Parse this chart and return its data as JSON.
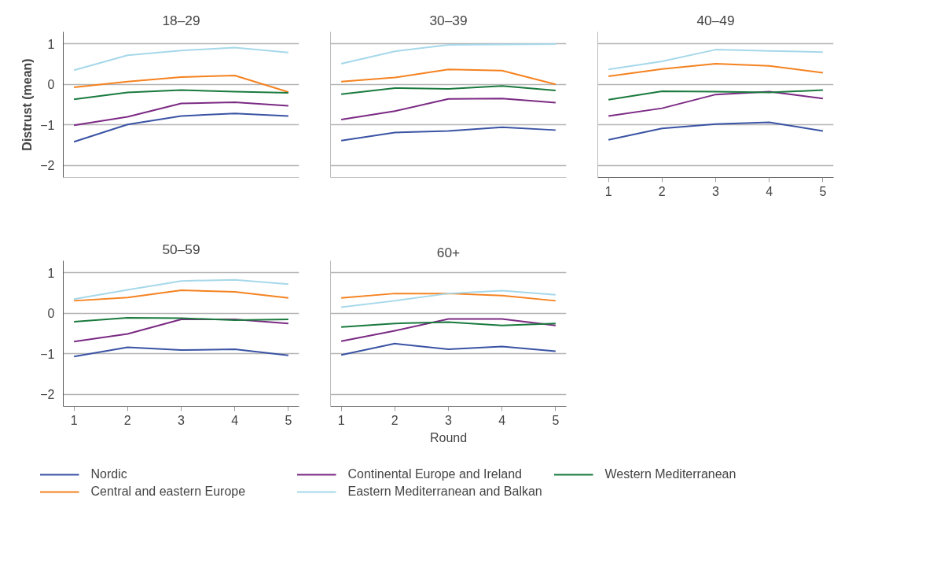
{
  "chart_data": [
    {
      "type": "line",
      "title": "18–29",
      "ylabel": "Distrust (mean)",
      "legend": "bottom",
      "x": [
        1,
        2,
        3,
        4,
        5
      ],
      "xlim": [
        0.8,
        5.2
      ],
      "ylim": [
        -2.3,
        1.3
      ],
      "xticks": [
        1,
        2,
        3,
        4,
        5
      ],
      "yticks": [
        -2,
        -1,
        0,
        1
      ],
      "grid": "y",
      "tick_labels": "y",
      "series": [
        {
          "name": "Nordic",
          "color": "#3a53a4",
          "values": [
            -1.42,
            -0.99,
            -0.78,
            -0.72,
            -0.78
          ]
        },
        {
          "name": "Central and eastern Europe",
          "color": "#f58220",
          "values": [
            -0.07,
            0.07,
            0.18,
            0.22,
            -0.19
          ]
        },
        {
          "name": "Continental Europe and Ireland",
          "color": "#7b2a83",
          "values": [
            -1.01,
            -0.8,
            -0.47,
            -0.44,
            -0.53
          ]
        },
        {
          "name": "Eastern Mediterranean and Balkan",
          "color": "#a6d8ea",
          "values": [
            0.35,
            0.72,
            0.84,
            0.91,
            0.79
          ]
        },
        {
          "name": "Western Mediterranean",
          "color": "#1a7a3e",
          "values": [
            -0.37,
            -0.2,
            -0.14,
            -0.18,
            -0.21
          ]
        }
      ]
    },
    {
      "type": "line",
      "title": "30–39",
      "x": [
        1,
        2,
        3,
        4,
        5
      ],
      "xlim": [
        0.8,
        5.2
      ],
      "ylim": [
        -2.3,
        1.3
      ],
      "xticks": [
        1,
        2,
        3,
        4,
        5
      ],
      "yticks": [
        -2,
        -1,
        0,
        1
      ],
      "grid": "y",
      "tick_labels": false,
      "series": [
        {
          "name": "Nordic",
          "color": "#3a53a4",
          "values": [
            -1.39,
            -1.19,
            -1.15,
            -1.06,
            -1.13
          ]
        },
        {
          "name": "Central and eastern Europe",
          "color": "#f58220",
          "values": [
            0.07,
            0.17,
            0.37,
            0.34,
            0.0
          ]
        },
        {
          "name": "Continental Europe and Ireland",
          "color": "#7b2a83",
          "values": [
            -0.87,
            -0.66,
            -0.36,
            -0.35,
            -0.45
          ]
        },
        {
          "name": "Eastern Mediterranean and Balkan",
          "color": "#a6d8ea",
          "values": [
            0.51,
            0.82,
            0.98,
            0.99,
            1.0
          ]
        },
        {
          "name": "Western Mediterranean",
          "color": "#1a7a3e",
          "values": [
            -0.24,
            -0.09,
            -0.11,
            -0.04,
            -0.15
          ]
        }
      ]
    },
    {
      "type": "line",
      "title": "40–49",
      "x": [
        1,
        2,
        3,
        4,
        5
      ],
      "xlim": [
        0.8,
        5.2
      ],
      "ylim": [
        -2.3,
        1.3
      ],
      "xticks": [
        1,
        2,
        3,
        4,
        5
      ],
      "yticks": [
        -2,
        -1,
        0,
        1
      ],
      "grid": "y",
      "tick_labels": "x",
      "series": [
        {
          "name": "Nordic",
          "color": "#3a53a4",
          "values": [
            -1.37,
            -1.09,
            -0.98,
            -0.94,
            -1.15
          ]
        },
        {
          "name": "Central and eastern Europe",
          "color": "#f58220",
          "values": [
            0.2,
            0.38,
            0.51,
            0.46,
            0.29
          ]
        },
        {
          "name": "Continental Europe and Ireland",
          "color": "#7b2a83",
          "values": [
            -0.78,
            -0.59,
            -0.25,
            -0.18,
            -0.35
          ]
        },
        {
          "name": "Eastern Mediterranean and Balkan",
          "color": "#a6d8ea",
          "values": [
            0.37,
            0.57,
            0.86,
            0.83,
            0.8
          ]
        },
        {
          "name": "Western Mediterranean",
          "color": "#1a7a3e",
          "values": [
            -0.38,
            -0.17,
            -0.18,
            -0.2,
            -0.14
          ]
        }
      ]
    },
    {
      "type": "line",
      "title": "50–59",
      "x": [
        1,
        2,
        3,
        4,
        5
      ],
      "xlim": [
        0.8,
        5.2
      ],
      "ylim": [
        -2.3,
        1.3
      ],
      "xticks": [
        1,
        2,
        3,
        4,
        5
      ],
      "yticks": [
        -2,
        -1,
        0,
        1
      ],
      "grid": "y",
      "series": [
        {
          "name": "Nordic",
          "color": "#3a53a4",
          "values": [
            -1.07,
            -0.84,
            -0.91,
            -0.89,
            -1.04
          ]
        },
        {
          "name": "Central and eastern Europe",
          "color": "#f58220",
          "values": [
            0.31,
            0.39,
            0.57,
            0.53,
            0.38
          ]
        },
        {
          "name": "Continental Europe and Ireland",
          "color": "#7b2a83",
          "values": [
            -0.7,
            -0.51,
            -0.15,
            -0.15,
            -0.25
          ]
        },
        {
          "name": "Eastern Mediterranean and Balkan",
          "color": "#a6d8ea",
          "values": [
            0.35,
            0.58,
            0.8,
            0.83,
            0.72
          ]
        },
        {
          "name": "Western Mediterranean",
          "color": "#1a7a3e",
          "values": [
            -0.21,
            -0.11,
            -0.12,
            -0.17,
            -0.15
          ]
        }
      ]
    },
    {
      "type": "line",
      "title": "60+",
      "xlabel": "Round",
      "x": [
        1,
        2,
        3,
        4,
        5
      ],
      "xlim": [
        0.8,
        5.2
      ],
      "ylim": [
        -2.3,
        1.3
      ],
      "xticks": [
        1,
        2,
        3,
        4,
        5
      ],
      "yticks": [
        -2,
        -1,
        0,
        1
      ],
      "grid": "y",
      "tick_labels": "x",
      "series": [
        {
          "name": "Nordic",
          "color": "#3a53a4",
          "values": [
            -1.03,
            -0.75,
            -0.89,
            -0.82,
            -0.94
          ]
        },
        {
          "name": "Central and eastern Europe",
          "color": "#f58220",
          "values": [
            0.38,
            0.49,
            0.49,
            0.44,
            0.31
          ]
        },
        {
          "name": "Continental Europe and Ireland",
          "color": "#7b2a83",
          "values": [
            -0.69,
            -0.43,
            -0.14,
            -0.14,
            -0.3
          ]
        },
        {
          "name": "Eastern Mediterranean and Balkan",
          "color": "#a6d8ea",
          "values": [
            0.15,
            0.31,
            0.49,
            0.56,
            0.46
          ]
        },
        {
          "name": "Western Mediterranean",
          "color": "#1a7a3e",
          "values": [
            -0.34,
            -0.25,
            -0.22,
            -0.3,
            -0.25
          ]
        }
      ]
    }
  ]
}
